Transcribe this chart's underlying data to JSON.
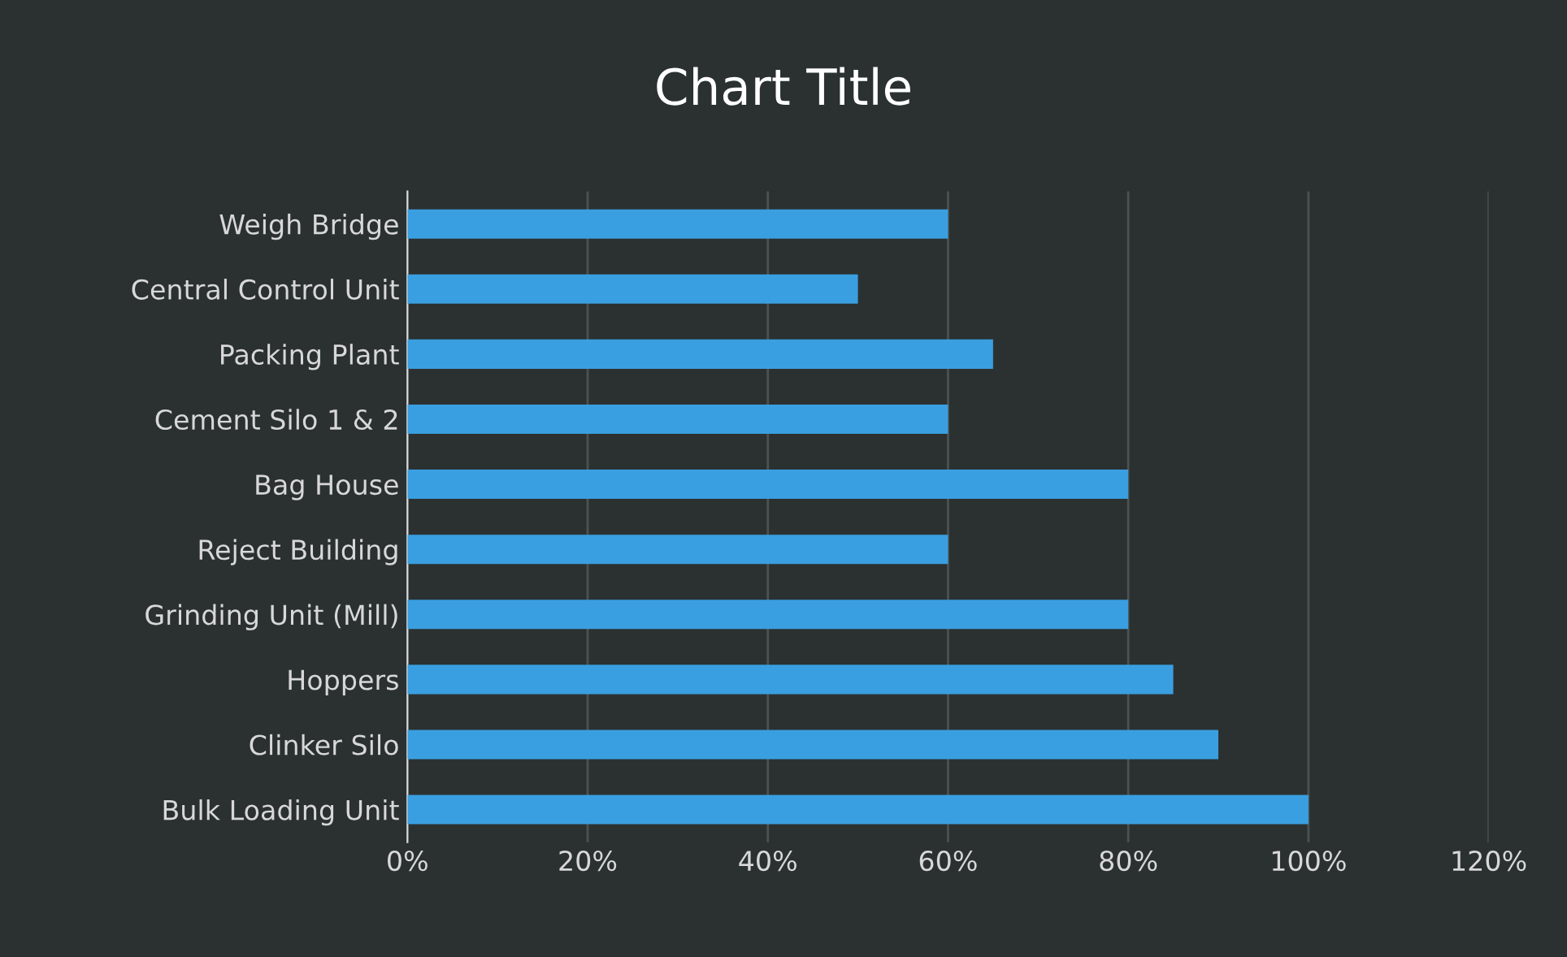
{
  "chart_data": {
    "type": "bar",
    "orientation": "horizontal",
    "title": "Chart Title",
    "categories": [
      "Weigh Bridge",
      "Central Control Unit",
      "Packing Plant",
      "Cement Silo 1 & 2",
      "Bag House",
      "Reject Building",
      "Grinding Unit (Mill)",
      "Hoppers",
      "Clinker Silo",
      "Bulk Loading Unit"
    ],
    "values": [
      60,
      50,
      65,
      60,
      80,
      60,
      80,
      85,
      90,
      100
    ],
    "color": "#3a9fe0",
    "xlim": [
      0,
      120
    ],
    "xticks": [
      {
        "value": 0,
        "label": "0%"
      },
      {
        "value": 20,
        "label": "20%"
      },
      {
        "value": 40,
        "label": "40%"
      },
      {
        "value": 60,
        "label": "60%"
      },
      {
        "value": 80,
        "label": "80%"
      },
      {
        "value": 100,
        "label": "100%"
      },
      {
        "value": 120,
        "label": "120%"
      }
    ],
    "grid": "x",
    "legend": false
  }
}
